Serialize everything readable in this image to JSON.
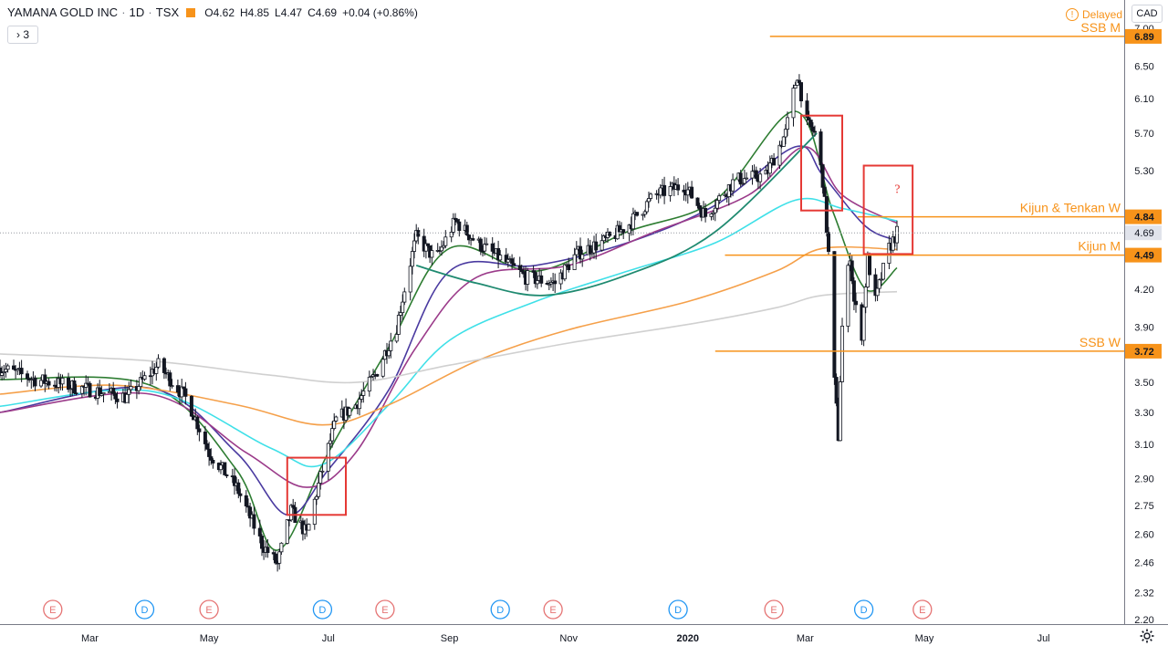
{
  "header": {
    "symbol": "YAMANA GOLD INC",
    "interval": "1D",
    "exchange": "TSX",
    "open": "O4.62",
    "high": "H4.85",
    "low": "L4.47",
    "close": "C4.69",
    "change": "+0.04 (+0.86%)",
    "collapse_label": "3",
    "delayed_label": "Delayed",
    "currency": "CAD",
    "accent_color": "#f7931a"
  },
  "chart_data": {
    "type": "candlestick",
    "title": "YAMANA GOLD INC · 1D · TSX",
    "x_tick_labels": [
      "Mar",
      "May",
      "Jul",
      "Sep",
      "Nov",
      "2020",
      "Mar",
      "May",
      "Jul"
    ],
    "x_tick_dates": [
      "2019-03-01",
      "2019-05-01",
      "2019-07-01",
      "2019-09-01",
      "2019-11-01",
      "2020-01-01",
      "2020-03-01",
      "2020-05-01",
      "2020-07-01"
    ],
    "y_ticks": [
      2.2,
      2.32,
      2.46,
      2.6,
      2.75,
      2.9,
      3.1,
      3.3,
      3.5,
      3.7,
      3.9,
      4.2,
      4.5,
      4.84,
      5.3,
      5.7,
      6.1,
      6.5,
      7.0
    ],
    "y_tick_labels": [
      "2.20",
      "2.32",
      "2.46",
      "2.60",
      "2.75",
      "2.90",
      "3.10",
      "3.30",
      "3.50",
      "3.70",
      "3.90",
      "4.20",
      "4.50",
      "4.84",
      "5.30",
      "5.70",
      "6.10",
      "6.50",
      "7.00"
    ],
    "y_scale": "log",
    "ylim": [
      2.18,
      7.1
    ],
    "last_price": 4.69,
    "last_price_label": "4.69",
    "price_path": [
      [
        "2019-01-14",
        3.6
      ],
      [
        "2019-02-01",
        3.52
      ],
      [
        "2019-03-01",
        3.45
      ],
      [
        "2019-03-20",
        3.4
      ],
      [
        "2019-04-05",
        3.62
      ],
      [
        "2019-04-20",
        3.38
      ],
      [
        "2019-05-01",
        3.05
      ],
      [
        "2019-05-15",
        2.85
      ],
      [
        "2019-05-28",
        2.55
      ],
      [
        "2019-06-05",
        2.45
      ],
      [
        "2019-06-12",
        2.72
      ],
      [
        "2019-06-20",
        2.6
      ],
      [
        "2019-06-28",
        2.95
      ],
      [
        "2019-07-05",
        3.25
      ],
      [
        "2019-07-15",
        3.35
      ],
      [
        "2019-07-25",
        3.55
      ],
      [
        "2019-08-05",
        3.9
      ],
      [
        "2019-08-15",
        4.65
      ],
      [
        "2019-08-25",
        4.45
      ],
      [
        "2019-09-04",
        4.8
      ],
      [
        "2019-09-15",
        4.6
      ],
      [
        "2019-09-28",
        4.45
      ],
      [
        "2019-10-10",
        4.3
      ],
      [
        "2019-10-25",
        4.25
      ],
      [
        "2019-11-05",
        4.5
      ],
      [
        "2019-11-20",
        4.62
      ],
      [
        "2019-12-01",
        4.75
      ],
      [
        "2019-12-15",
        5.05
      ],
      [
        "2019-12-30",
        5.15
      ],
      [
        "2020-01-10",
        4.85
      ],
      [
        "2020-01-25",
        5.2
      ],
      [
        "2020-02-10",
        5.25
      ],
      [
        "2020-02-20",
        5.7
      ],
      [
        "2020-02-26",
        6.4
      ],
      [
        "2020-03-02",
        5.8
      ],
      [
        "2020-03-06",
        5.7
      ],
      [
        "2020-03-10",
        5.2
      ],
      [
        "2020-03-13",
        4.5
      ],
      [
        "2020-03-16",
        3.5
      ],
      [
        "2020-03-18",
        3.15
      ],
      [
        "2020-03-20",
        3.9
      ],
      [
        "2020-03-24",
        4.5
      ],
      [
        "2020-03-26",
        4.1
      ],
      [
        "2020-03-30",
        3.85
      ],
      [
        "2020-04-02",
        4.45
      ],
      [
        "2020-04-06",
        4.1
      ],
      [
        "2020-04-09",
        4.3
      ],
      [
        "2020-04-13",
        4.55
      ],
      [
        "2020-04-17",
        4.69
      ]
    ],
    "moving_averages": [
      {
        "color": "#2e7d32",
        "points": [
          [
            "2019-01-14",
            3.52
          ],
          [
            "2019-04-01",
            3.48
          ],
          [
            "2019-05-15",
            2.95
          ],
          [
            "2019-06-05",
            2.52
          ],
          [
            "2019-07-01",
            3.05
          ],
          [
            "2019-08-01",
            3.75
          ],
          [
            "2019-09-01",
            4.55
          ],
          [
            "2019-10-15",
            4.35
          ],
          [
            "2019-12-01",
            4.7
          ],
          [
            "2020-01-15",
            5.0
          ],
          [
            "2020-02-25",
            5.95
          ],
          [
            "2020-03-15",
            4.9
          ],
          [
            "2020-04-01",
            4.2
          ],
          [
            "2020-04-17",
            4.38
          ]
        ]
      },
      {
        "color": "#4a3aa0",
        "points": [
          [
            "2019-01-14",
            3.3
          ],
          [
            "2019-04-01",
            3.46
          ],
          [
            "2019-05-15",
            3.05
          ],
          [
            "2019-06-10",
            2.7
          ],
          [
            "2019-07-01",
            2.95
          ],
          [
            "2019-08-01",
            3.45
          ],
          [
            "2019-09-01",
            4.35
          ],
          [
            "2019-10-15",
            4.4
          ],
          [
            "2019-12-01",
            4.6
          ],
          [
            "2020-01-15",
            4.95
          ],
          [
            "2020-02-25",
            5.55
          ],
          [
            "2020-03-10",
            5.25
          ],
          [
            "2020-04-01",
            4.75
          ],
          [
            "2020-04-17",
            4.62
          ]
        ]
      },
      {
        "color": "#9b3b8a",
        "points": [
          [
            "2019-01-14",
            3.3
          ],
          [
            "2019-04-01",
            3.42
          ],
          [
            "2019-05-20",
            3.05
          ],
          [
            "2019-06-20",
            2.85
          ],
          [
            "2019-07-15",
            3.05
          ],
          [
            "2019-08-15",
            3.75
          ],
          [
            "2019-09-15",
            4.3
          ],
          [
            "2019-11-01",
            4.4
          ],
          [
            "2019-12-15",
            4.7
          ],
          [
            "2020-02-01",
            5.05
          ],
          [
            "2020-03-01",
            5.55
          ],
          [
            "2020-03-20",
            5.05
          ],
          [
            "2020-04-17",
            4.78
          ]
        ]
      },
      {
        "color": "#3fe0e8",
        "points": [
          [
            "2019-01-14",
            3.34
          ],
          [
            "2019-04-01",
            3.44
          ],
          [
            "2019-06-01",
            3.08
          ],
          [
            "2019-06-28",
            2.98
          ],
          [
            "2019-08-01",
            3.35
          ],
          [
            "2019-09-01",
            3.8
          ],
          [
            "2019-10-15",
            4.1
          ],
          [
            "2019-12-01",
            4.35
          ],
          [
            "2020-01-15",
            4.6
          ],
          [
            "2020-02-25",
            5.0
          ],
          [
            "2020-03-20",
            4.92
          ],
          [
            "2020-04-17",
            4.8
          ]
        ]
      },
      {
        "color": "#f5a04a",
        "points": [
          [
            "2019-01-14",
            3.42
          ],
          [
            "2019-03-15",
            3.48
          ],
          [
            "2019-05-15",
            3.35
          ],
          [
            "2019-06-28",
            3.22
          ],
          [
            "2019-08-01",
            3.35
          ],
          [
            "2019-09-15",
            3.65
          ],
          [
            "2019-11-01",
            3.88
          ],
          [
            "2020-01-01",
            4.1
          ],
          [
            "2020-02-15",
            4.35
          ],
          [
            "2020-03-10",
            4.55
          ],
          [
            "2020-04-17",
            4.54
          ]
        ]
      },
      {
        "color": "#d0d0d0",
        "points": [
          [
            "2019-01-14",
            3.7
          ],
          [
            "2019-04-01",
            3.65
          ],
          [
            "2019-06-01",
            3.55
          ],
          [
            "2019-07-15",
            3.5
          ],
          [
            "2019-09-01",
            3.62
          ],
          [
            "2019-11-01",
            3.78
          ],
          [
            "2020-01-01",
            3.92
          ],
          [
            "2020-02-15",
            4.05
          ],
          [
            "2020-03-10",
            4.15
          ],
          [
            "2020-04-17",
            4.18
          ]
        ]
      }
    ],
    "trend_curve": {
      "color": "#1f8a70",
      "points": [
        [
          "2019-08-15",
          4.4
        ],
        [
          "2019-09-15",
          4.25
        ],
        [
          "2019-10-20",
          4.15
        ],
        [
          "2019-12-01",
          4.32
        ],
        [
          "2020-01-15",
          4.7
        ],
        [
          "2020-03-07",
          5.7
        ]
      ]
    },
    "horizontal_levels": [
      {
        "label": "SSB M",
        "value": 6.89,
        "value_label": "6.89",
        "from": "2020-02-12",
        "color": "#f7931a"
      },
      {
        "label": "Kijun & Tenkan W",
        "value": 4.84,
        "value_label": "4.84",
        "from": "2020-03-28",
        "color": "#f7931a"
      },
      {
        "label": "Kijun M",
        "value": 4.49,
        "value_label": "4.49",
        "from": "2020-01-20",
        "color": "#f7931a"
      },
      {
        "label": "SSB W",
        "value": 3.72,
        "value_label": "3.72",
        "from": "2020-01-15",
        "color": "#f7931a"
      }
    ],
    "highlight_boxes": [
      {
        "x0": "2019-06-10",
        "x1": "2019-07-10",
        "y0": 2.7,
        "y1": 3.02,
        "color": "#e53935"
      },
      {
        "x0": "2020-02-28",
        "x1": "2020-03-20",
        "y0": 4.9,
        "y1": 5.9,
        "color": "#e53935"
      },
      {
        "x0": "2020-03-31",
        "x1": "2020-04-25",
        "y0": 4.5,
        "y1": 5.35,
        "color": "#e53935",
        "annotation": "?"
      }
    ],
    "events": [
      {
        "date": "2019-02-10",
        "label": "E",
        "kind": "earnings"
      },
      {
        "date": "2019-03-29",
        "label": "D",
        "kind": "dividend"
      },
      {
        "date": "2019-05-01",
        "label": "E",
        "kind": "earnings"
      },
      {
        "date": "2019-06-28",
        "label": "D",
        "kind": "dividend"
      },
      {
        "date": "2019-07-30",
        "label": "E",
        "kind": "earnings"
      },
      {
        "date": "2019-09-27",
        "label": "D",
        "kind": "dividend"
      },
      {
        "date": "2019-10-24",
        "label": "E",
        "kind": "earnings"
      },
      {
        "date": "2019-12-27",
        "label": "D",
        "kind": "dividend"
      },
      {
        "date": "2020-02-14",
        "label": "E",
        "kind": "earnings"
      },
      {
        "date": "2020-03-31",
        "label": "D",
        "kind": "dividend"
      },
      {
        "date": "2020-04-30",
        "label": "E",
        "kind": "earnings"
      }
    ],
    "grid": false,
    "legend": "none"
  }
}
